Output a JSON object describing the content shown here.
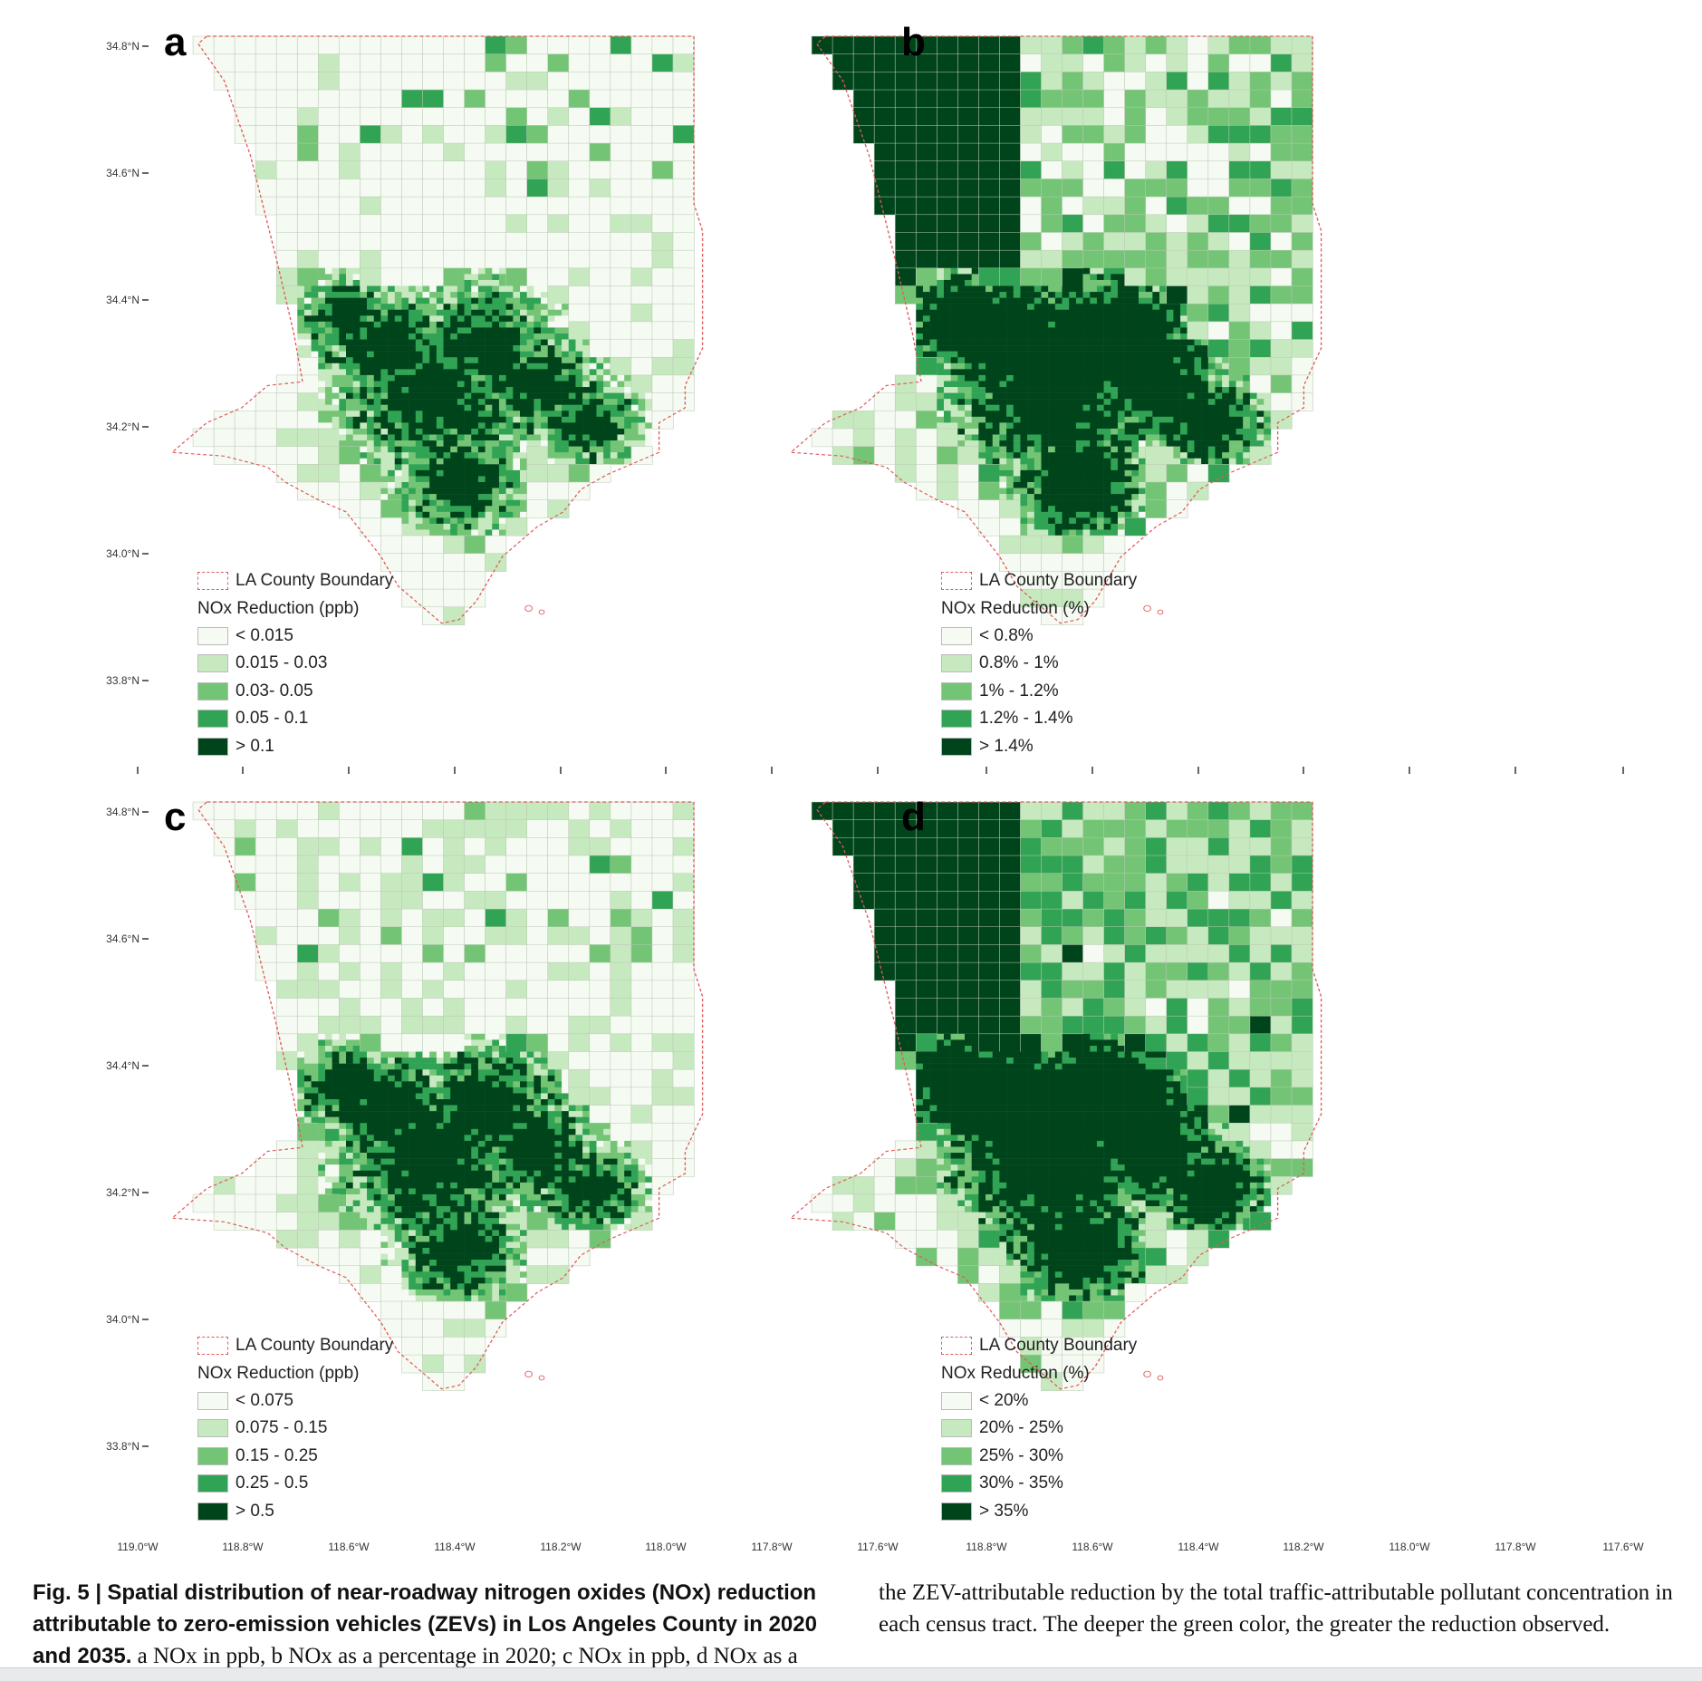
{
  "panels": [
    {
      "letter": "a",
      "boundary_label": "LA County Boundary",
      "legend_title": "NOx Reduction (ppb)",
      "classes": [
        "< 0.015",
        "0.015 - 0.03",
        "0.03- 0.05",
        "0.05 - 0.1",
        "> 0.1"
      ]
    },
    {
      "letter": "b",
      "boundary_label": "LA County Boundary",
      "legend_title": "NOx Reduction (%)",
      "classes": [
        "< 0.8%",
        "0.8% - 1%",
        "1% - 1.2%",
        "1.2% - 1.4%",
        "> 1.4%"
      ]
    },
    {
      "letter": "c",
      "boundary_label": "LA County Boundary",
      "legend_title": "NOx Reduction (ppb)",
      "classes": [
        "< 0.075",
        "0.075 - 0.15",
        "0.15 - 0.25",
        "0.25 - 0.5",
        "> 0.5"
      ]
    },
    {
      "letter": "d",
      "boundary_label": "LA County Boundary",
      "legend_title": "NOx Reduction (%)",
      "classes": [
        "< 20%",
        "20% - 25%",
        "25% - 30%",
        "30% - 35%",
        "> 35%"
      ]
    }
  ],
  "class_colors": [
    "#f5fbf2",
    "#c7e9c0",
    "#74c476",
    "#31a354",
    "#00441b"
  ],
  "boundary_color": "#e05a5a",
  "y_ticks": [
    "34.8°N",
    "34.6°N",
    "34.4°N",
    "34.2°N",
    "34.0°N",
    "33.8°N"
  ],
  "x_ticks_left": [
    "119.0°W",
    "118.8°W",
    "118.6°W",
    "118.4°W",
    "118.2°W",
    "118.0°W",
    "117.8°W",
    "117.6°W"
  ],
  "x_ticks_right": [
    "118.8°W",
    "118.6°W",
    "118.4°W",
    "118.2°W",
    "118.0°W",
    "117.8°W",
    "117.6°W"
  ],
  "caption": {
    "label": "Fig. 5 |",
    "title": "Spatial distribution of near-roadway nitrogen oxides (NOx) reduction attributable to zero-emission vehicles (ZEVs) in Los Angeles County in 2020 and 2035.",
    "left_rest": "a NOx in ppb, b NOx as a percentage in 2020; c NOx in ppb, d NOx as a",
    "right": "the ZEV-attributable reduction by the total traffic-attributable pollutant concentration in each census tract. The deeper the green color, the greater the reduction observed."
  }
}
